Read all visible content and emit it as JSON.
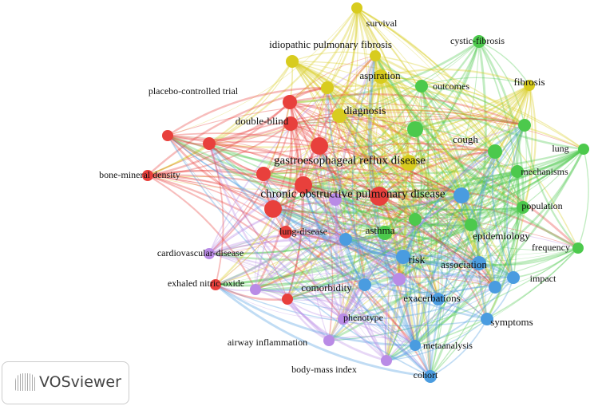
{
  "nodes": [
    {
      "label": "survival"
    },
    {
      "label": "idiopathic pulmonary fibrosis"
    },
    {
      "label": "cystic-fibrosis"
    },
    {
      "label": "aspiration"
    },
    {
      "label": "outcomes"
    },
    {
      "label": "fibrosis"
    },
    {
      "label": "placebo-controlled trial"
    },
    {
      "label": "diagnosis"
    },
    {
      "label": "double-blind"
    },
    {
      "label": "cough"
    },
    {
      "label": "lung"
    },
    {
      "label": "gastroesophageal reflux disease"
    },
    {
      "label": "bone-mineral density"
    },
    {
      "label": "mechanisms"
    },
    {
      "label": "chronic obstructive pulmonary disease"
    },
    {
      "label": "population"
    },
    {
      "label": "lung-disease"
    },
    {
      "label": "asthma"
    },
    {
      "label": "epidemiology"
    },
    {
      "label": "cardiovascular-disease"
    },
    {
      "label": "frequency"
    },
    {
      "label": "risk"
    },
    {
      "label": "association"
    },
    {
      "label": "impact"
    },
    {
      "label": "exhaled nitric-oxide"
    },
    {
      "label": "comorbidity"
    },
    {
      "label": "exacerbations"
    },
    {
      "label": "phenotype"
    },
    {
      "label": "symptoms"
    },
    {
      "label": "airway inflammation"
    },
    {
      "label": "metaanalysis"
    },
    {
      "label": "body-mass index"
    },
    {
      "label": "cohort"
    }
  ],
  "logo": {
    "text": "VOSviewer"
  }
}
